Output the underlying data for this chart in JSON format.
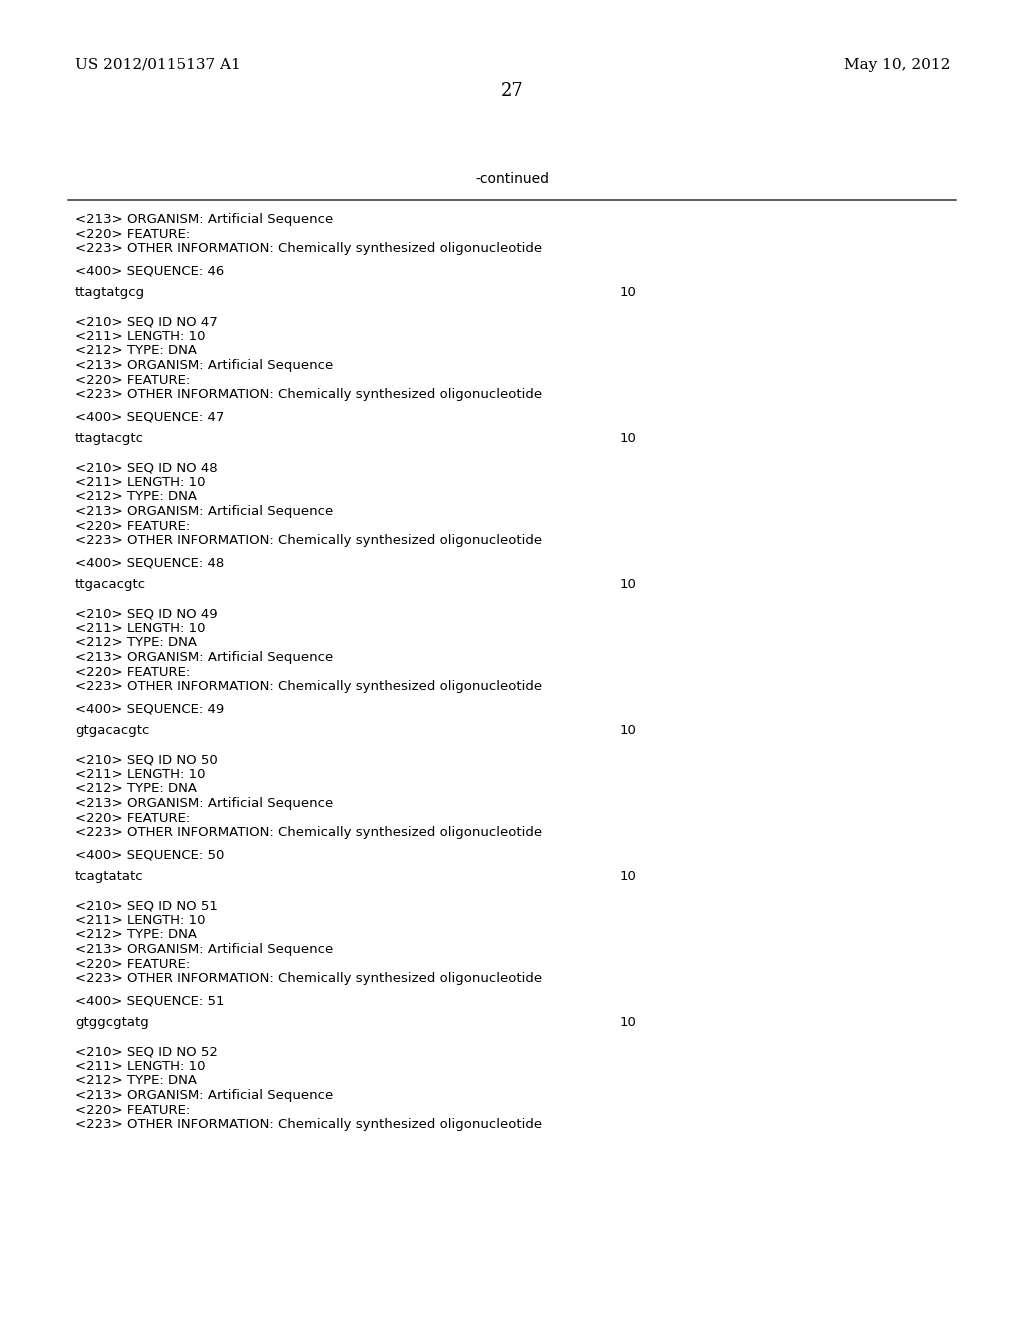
{
  "bg_color": "#ffffff",
  "header_left": "US 2012/0115137 A1",
  "header_right": "May 10, 2012",
  "page_number": "27",
  "continued_text": "-continued",
  "mono_font": "Courier New",
  "prop_font": "serif",
  "header_fontsize": 11,
  "page_num_fontsize": 13,
  "content_fontsize": 9.5,
  "continued_fontsize": 10,
  "content": [
    {
      "text": "<213> ORGANISM: Artificial Sequence",
      "seq_num": null
    },
    {
      "text": "<220> FEATURE:",
      "seq_num": null
    },
    {
      "text": "<223> OTHER INFORMATION: Chemically synthesized oligonucleotide",
      "seq_num": null
    },
    {
      "text": "",
      "seq_num": null
    },
    {
      "text": "<400> SEQUENCE: 46",
      "seq_num": null
    },
    {
      "text": "",
      "seq_num": null
    },
    {
      "text": "ttagtatgcg",
      "seq_num": "10"
    },
    {
      "text": "",
      "seq_num": null
    },
    {
      "text": "",
      "seq_num": null
    },
    {
      "text": "<210> SEQ ID NO 47",
      "seq_num": null
    },
    {
      "text": "<211> LENGTH: 10",
      "seq_num": null
    },
    {
      "text": "<212> TYPE: DNA",
      "seq_num": null
    },
    {
      "text": "<213> ORGANISM: Artificial Sequence",
      "seq_num": null
    },
    {
      "text": "<220> FEATURE:",
      "seq_num": null
    },
    {
      "text": "<223> OTHER INFORMATION: Chemically synthesized oligonucleotide",
      "seq_num": null
    },
    {
      "text": "",
      "seq_num": null
    },
    {
      "text": "<400> SEQUENCE: 47",
      "seq_num": null
    },
    {
      "text": "",
      "seq_num": null
    },
    {
      "text": "ttagtacgtc",
      "seq_num": "10"
    },
    {
      "text": "",
      "seq_num": null
    },
    {
      "text": "",
      "seq_num": null
    },
    {
      "text": "<210> SEQ ID NO 48",
      "seq_num": null
    },
    {
      "text": "<211> LENGTH: 10",
      "seq_num": null
    },
    {
      "text": "<212> TYPE: DNA",
      "seq_num": null
    },
    {
      "text": "<213> ORGANISM: Artificial Sequence",
      "seq_num": null
    },
    {
      "text": "<220> FEATURE:",
      "seq_num": null
    },
    {
      "text": "<223> OTHER INFORMATION: Chemically synthesized oligonucleotide",
      "seq_num": null
    },
    {
      "text": "",
      "seq_num": null
    },
    {
      "text": "<400> SEQUENCE: 48",
      "seq_num": null
    },
    {
      "text": "",
      "seq_num": null
    },
    {
      "text": "ttgacacgtc",
      "seq_num": "10"
    },
    {
      "text": "",
      "seq_num": null
    },
    {
      "text": "",
      "seq_num": null
    },
    {
      "text": "<210> SEQ ID NO 49",
      "seq_num": null
    },
    {
      "text": "<211> LENGTH: 10",
      "seq_num": null
    },
    {
      "text": "<212> TYPE: DNA",
      "seq_num": null
    },
    {
      "text": "<213> ORGANISM: Artificial Sequence",
      "seq_num": null
    },
    {
      "text": "<220> FEATURE:",
      "seq_num": null
    },
    {
      "text": "<223> OTHER INFORMATION: Chemically synthesized oligonucleotide",
      "seq_num": null
    },
    {
      "text": "",
      "seq_num": null
    },
    {
      "text": "<400> SEQUENCE: 49",
      "seq_num": null
    },
    {
      "text": "",
      "seq_num": null
    },
    {
      "text": "gtgacacgtc",
      "seq_num": "10"
    },
    {
      "text": "",
      "seq_num": null
    },
    {
      "text": "",
      "seq_num": null
    },
    {
      "text": "<210> SEQ ID NO 50",
      "seq_num": null
    },
    {
      "text": "<211> LENGTH: 10",
      "seq_num": null
    },
    {
      "text": "<212> TYPE: DNA",
      "seq_num": null
    },
    {
      "text": "<213> ORGANISM: Artificial Sequence",
      "seq_num": null
    },
    {
      "text": "<220> FEATURE:",
      "seq_num": null
    },
    {
      "text": "<223> OTHER INFORMATION: Chemically synthesized oligonucleotide",
      "seq_num": null
    },
    {
      "text": "",
      "seq_num": null
    },
    {
      "text": "<400> SEQUENCE: 50",
      "seq_num": null
    },
    {
      "text": "",
      "seq_num": null
    },
    {
      "text": "tcagtatatc",
      "seq_num": "10"
    },
    {
      "text": "",
      "seq_num": null
    },
    {
      "text": "",
      "seq_num": null
    },
    {
      "text": "<210> SEQ ID NO 51",
      "seq_num": null
    },
    {
      "text": "<211> LENGTH: 10",
      "seq_num": null
    },
    {
      "text": "<212> TYPE: DNA",
      "seq_num": null
    },
    {
      "text": "<213> ORGANISM: Artificial Sequence",
      "seq_num": null
    },
    {
      "text": "<220> FEATURE:",
      "seq_num": null
    },
    {
      "text": "<223> OTHER INFORMATION: Chemically synthesized oligonucleotide",
      "seq_num": null
    },
    {
      "text": "",
      "seq_num": null
    },
    {
      "text": "<400> SEQUENCE: 51",
      "seq_num": null
    },
    {
      "text": "",
      "seq_num": null
    },
    {
      "text": "gtggcgtatg",
      "seq_num": "10"
    },
    {
      "text": "",
      "seq_num": null
    },
    {
      "text": "",
      "seq_num": null
    },
    {
      "text": "<210> SEQ ID NO 52",
      "seq_num": null
    },
    {
      "text": "<211> LENGTH: 10",
      "seq_num": null
    },
    {
      "text": "<212> TYPE: DNA",
      "seq_num": null
    },
    {
      "text": "<213> ORGANISM: Artificial Sequence",
      "seq_num": null
    },
    {
      "text": "<220> FEATURE:",
      "seq_num": null
    },
    {
      "text": "<223> OTHER INFORMATION: Chemically synthesized oligonucleotide",
      "seq_num": null
    }
  ]
}
